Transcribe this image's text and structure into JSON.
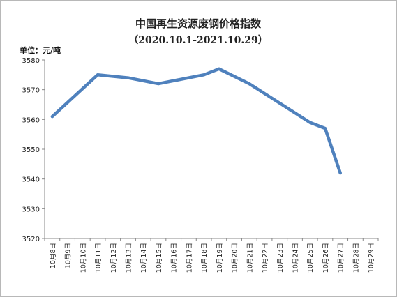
{
  "chart_data": {
    "type": "line",
    "title": "中国再生资源废钢价格指数",
    "subtitle": "（2020.10.1-2021.10.29）",
    "unit_label": "单位：元/吨",
    "categories": [
      "10月8日",
      "10月9日",
      "10月10日",
      "10月11日",
      "10月12日",
      "10月13日",
      "10月14日",
      "10月15日",
      "10月16日",
      "10月17日",
      "10月18日",
      "10月19日",
      "10月20日",
      "10月21日",
      "10月22日",
      "10月23日",
      "10月24日",
      "10月25日",
      "10月26日",
      "10月27日",
      "10月28日",
      "10月29日"
    ],
    "series": [
      {
        "color": "#4f81bd",
        "points": [
          {
            "x": "10月8日",
            "y": 3561
          },
          {
            "x": "10月11日",
            "y": 3575
          },
          {
            "x": "10月13日",
            "y": 3574
          },
          {
            "x": "10月15日",
            "y": 3572
          },
          {
            "x": "10月18日",
            "y": 3575
          },
          {
            "x": "10月19日",
            "y": 3577
          },
          {
            "x": "10月21日",
            "y": 3572
          },
          {
            "x": "10月25日",
            "y": 3559
          },
          {
            "x": "10月26日",
            "y": 3557
          },
          {
            "x": "10月27日",
            "y": 3542
          }
        ]
      }
    ],
    "ylim": [
      3520,
      3580
    ],
    "yticks": [
      3580,
      3570,
      3560,
      3550,
      3540,
      3530,
      3520
    ],
    "grid": false,
    "legend": "none"
  }
}
